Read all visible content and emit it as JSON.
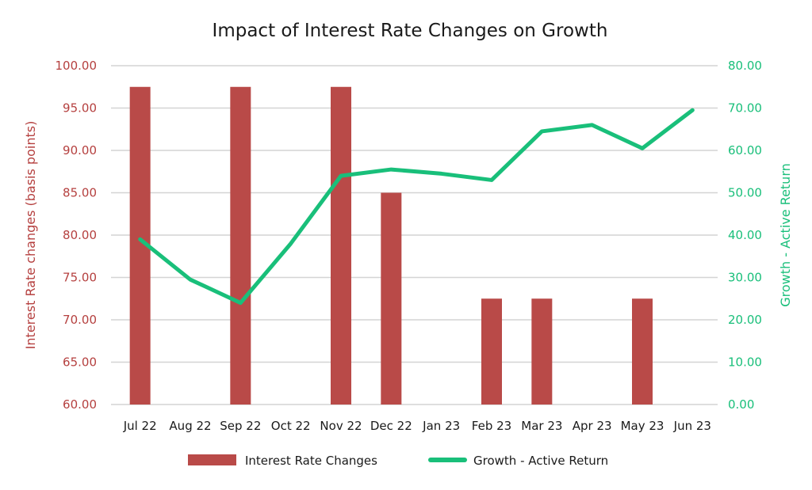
{
  "chart_data": {
    "type": "bar+line",
    "title": "Impact of Interest Rate Changes on Growth",
    "categories": [
      "Jul 22",
      "Aug 22",
      "Sep 22",
      "Oct 22",
      "Nov 22",
      "Dec 22",
      "Jan 23",
      "Feb 23",
      "Mar 23",
      "Apr 23",
      "May 23",
      "Jun 23"
    ],
    "series": [
      {
        "name": "Interest Rate Changes",
        "type": "bar",
        "axis": "left",
        "values": [
          97.5,
          null,
          97.5,
          null,
          97.5,
          85,
          null,
          72.5,
          72.5,
          null,
          72.5,
          null
        ]
      },
      {
        "name": "Growth - Active Return",
        "type": "line",
        "axis": "right",
        "values": [
          39,
          29.5,
          24,
          38,
          54,
          55.5,
          54.5,
          53,
          64.5,
          66,
          60.5,
          69.5
        ]
      }
    ],
    "y_left": {
      "label": "Interest Rate changes (basis points)",
      "ylim": [
        60,
        100
      ],
      "ticks": [
        "60.00",
        "65.00",
        "70.00",
        "75.00",
        "80.00",
        "85.00",
        "90.00",
        "95.00",
        "100.00"
      ]
    },
    "y_right": {
      "label": "Growth - Active Return",
      "ylim": [
        0,
        80
      ],
      "ticks": [
        "0.00",
        "10.00",
        "20.00",
        "30.00",
        "40.00",
        "50.00",
        "60.00",
        "70.00",
        "80.00"
      ]
    },
    "grid": true,
    "legend_position": "bottom"
  },
  "colors": {
    "bar": "#b94a48",
    "line": "#19bf7a",
    "left_axis_text": "#b5403f",
    "right_axis_text": "#19bf7a"
  }
}
